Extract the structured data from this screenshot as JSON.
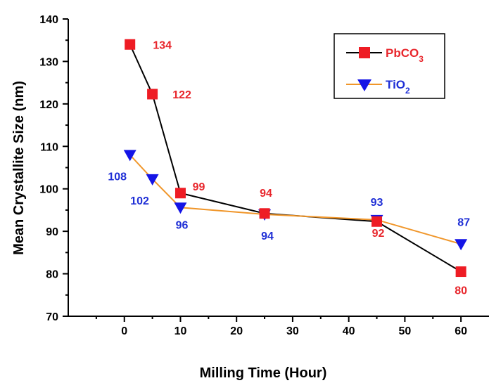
{
  "chart_data": {
    "type": "line",
    "xlabel": "Milling Time (Hour)",
    "ylabel": "Mean Crystallite Size (nm)",
    "xlim": [
      -10,
      65
    ],
    "ylim": [
      70,
      140
    ],
    "xticks": [
      0,
      10,
      20,
      30,
      40,
      50,
      60
    ],
    "yticks": [
      70,
      80,
      90,
      100,
      110,
      120,
      130,
      140
    ],
    "legend_position": "top-right",
    "series": [
      {
        "name": "PbCO",
        "name_subscript": "3",
        "line_color": "#000000",
        "marker": "square",
        "marker_color": "#ee1c24",
        "label_color": "#e8262c",
        "x": [
          1,
          5,
          10,
          25,
          45,
          60
        ],
        "values": [
          134,
          122.3,
          99,
          94.2,
          92.3,
          80.5
        ],
        "labels": [
          "134",
          "122",
          "99",
          "94",
          "92",
          "80"
        ]
      },
      {
        "name": "TiO",
        "name_subscript": "2",
        "line_color": "#f0962a",
        "marker": "triangle-down",
        "marker_color": "#1414e6",
        "label_color": "#1f2fd6",
        "x": [
          1,
          5,
          10,
          25,
          45,
          60
        ],
        "values": [
          108,
          102.3,
          95.6,
          94,
          92.7,
          87
        ],
        "labels": [
          "108",
          "102",
          "96",
          "94",
          "93",
          "87"
        ]
      }
    ]
  }
}
